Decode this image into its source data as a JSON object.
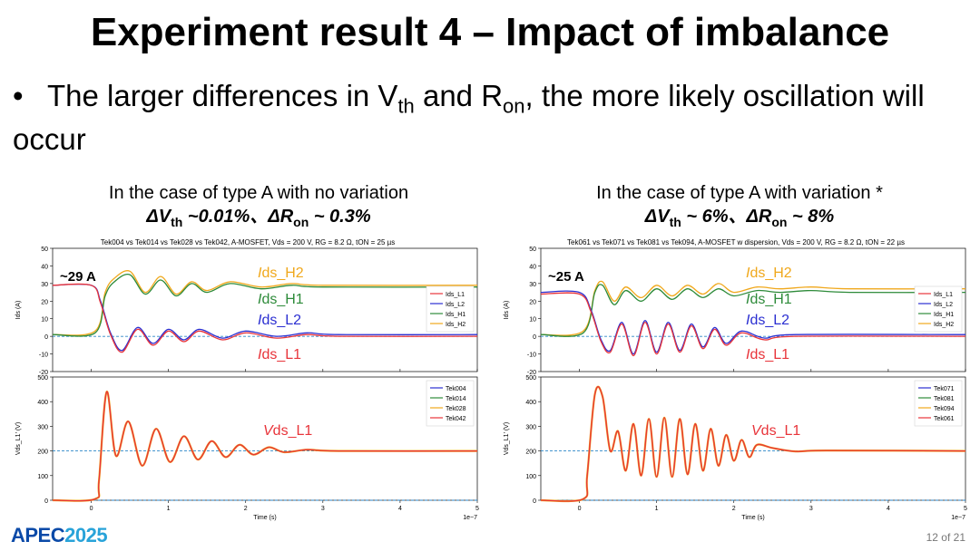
{
  "slide": {
    "title": "Experiment result 4 – Impact of imbalance",
    "bullet_dot": "•",
    "bullet_pre": "The larger differences in V",
    "bullet_sub1": "th",
    "bullet_mid": " and R",
    "bullet_sub2": "on",
    "bullet_post": ", the more likely oscillation will occur",
    "logo_a": "APEC",
    "logo_b": "2025",
    "page": "12 of 21"
  },
  "left_caption": {
    "line1": "In the case of type A with no variation",
    "dv": "ΔV",
    "dv_sub": "th",
    "dv_val": " ~0.01%、",
    "dr": "ΔR",
    "dr_sub": "on",
    "dr_val": " ~ 0.3%"
  },
  "right_caption": {
    "line1": "In the case of type A with variation *",
    "dv": "ΔV",
    "dv_sub": "th",
    "dv_val": " ~ 6%、",
    "dr": "ΔR",
    "dr_sub": "on",
    "dr_val": " ~ 8%"
  },
  "chart_data": [
    {
      "type": "line",
      "title": "Tek004 vs Tek014 vs Tek028 vs Tek042, A-MOSFET, Vds = 200 V, RG = 8.2 Ω, tON = 25 µs",
      "xlabel": "Time (s)",
      "x_scale_note": "1e−7",
      "xlim": [
        0,
        5
      ],
      "x_ticks": [
        0,
        1,
        2,
        3,
        4,
        5
      ],
      "grid": false,
      "colors": {
        "L1": "#e8343a",
        "L2": "#2b2fd1",
        "H1": "#2e8b3a",
        "H2": "#f0a81c",
        "ref": "#2a86c8"
      },
      "top": {
        "ylabel": "Ids (A)",
        "ylim": [
          -20,
          50
        ],
        "y_ticks": [
          -20,
          -10,
          0,
          10,
          20,
          30,
          40,
          50
        ],
        "ref_line": 0,
        "legend": [
          "Ids_L1",
          "Ids_L2",
          "Ids_H1",
          "Ids_H2"
        ],
        "legend_position": "right",
        "annotation": "~29 A",
        "labels": {
          "H2": "Ids_H2",
          "H1": "Ids_H1",
          "L2": "Ids_L2",
          "L1": "Ids_L1"
        },
        "series": [
          {
            "key": "H2",
            "x": [
              -0.5,
              0.05,
              0.18,
              0.3,
              0.5,
              0.7,
              0.9,
              1.1,
              1.3,
              1.5,
              1.8,
              2.2,
              2.6,
              3.0,
              5.0
            ],
            "y": [
              1,
              3,
              25,
              33,
              37,
              25,
              34,
              24,
              31,
              26,
              31,
              28,
              30,
              29,
              29
            ]
          },
          {
            "key": "H1",
            "x": [
              -0.5,
              0.05,
              0.18,
              0.3,
              0.5,
              0.7,
              0.9,
              1.1,
              1.3,
              1.5,
              1.8,
              2.2,
              2.6,
              3.0,
              5.0
            ],
            "y": [
              1,
              2,
              23,
              31,
              35,
              24,
              32,
              23,
              30,
              25,
              30,
              27,
              29,
              28,
              28
            ]
          },
          {
            "key": "L2",
            "x": [
              -0.5,
              0.0,
              0.12,
              0.25,
              0.4,
              0.6,
              0.8,
              1.0,
              1.2,
              1.4,
              1.7,
              2.0,
              2.4,
              2.8,
              3.2,
              5.0
            ],
            "y": [
              29,
              29,
              20,
              2,
              -8,
              5,
              -4,
              4,
              -2,
              4,
              -1,
              3,
              0,
              2,
              1,
              1
            ]
          },
          {
            "key": "L1",
            "x": [
              -0.5,
              0.0,
              0.12,
              0.25,
              0.4,
              0.6,
              0.8,
              1.0,
              1.2,
              1.4,
              1.7,
              2.0,
              2.4,
              2.8,
              3.2,
              5.0
            ],
            "y": [
              29,
              29,
              19,
              1,
              -9,
              4,
              -5,
              3,
              -3,
              3,
              -2,
              2,
              -1,
              1,
              0,
              0
            ]
          }
        ]
      },
      "bottom": {
        "ylabel": "Vds_L1' (V)",
        "ylim": [
          0,
          500
        ],
        "y_ticks": [
          0,
          100,
          200,
          300,
          400,
          500
        ],
        "ref_line": 200,
        "legend": [
          "Tek004",
          "Tek014",
          "Tek028",
          "Tek042"
        ],
        "legend_position": "top-right",
        "label": "Vds_L1",
        "legend_colors": [
          "#2b2fd1",
          "#2e8b3a",
          "#f0a81c",
          "#e8343a"
        ],
        "series": {
          "x": [
            -0.5,
            0.05,
            0.1,
            0.2,
            0.32,
            0.48,
            0.66,
            0.84,
            1.02,
            1.2,
            1.38,
            1.56,
            1.74,
            1.92,
            2.1,
            2.3,
            2.5,
            2.8,
            3.2,
            5.0
          ],
          "y": [
            0,
            5,
            80,
            440,
            180,
            320,
            140,
            290,
            155,
            260,
            165,
            240,
            175,
            225,
            185,
            215,
            195,
            205,
            200,
            200
          ]
        }
      }
    },
    {
      "type": "line",
      "title": "Tek061 vs Tek071 vs Tek081 vs Tek094, A-MOSFET w dispersion, Vds = 200 V, RG = 8.2 Ω, tON = 22 µs",
      "xlabel": "Time (s)",
      "x_scale_note": "1e−7",
      "xlim": [
        0,
        5
      ],
      "x_ticks": [
        0,
        1,
        2,
        3,
        4,
        5
      ],
      "grid": false,
      "colors": {
        "L1": "#e8343a",
        "L2": "#2b2fd1",
        "H1": "#2e8b3a",
        "H2": "#f0a81c",
        "ref": "#2a86c8"
      },
      "top": {
        "ylabel": "Ids (A)",
        "ylim": [
          -20,
          50
        ],
        "y_ticks": [
          -20,
          -10,
          0,
          10,
          20,
          30,
          40,
          50
        ],
        "ref_line": 0,
        "legend": [
          "Ids_L1",
          "Ids_L2",
          "Ids_H1",
          "Ids_H2"
        ],
        "legend_position": "right",
        "annotation": "~25 A",
        "labels": {
          "H2": "Ids_H2",
          "H1": "Ids_H1",
          "L2": "Ids_L2",
          "L1": "Ids_L1"
        },
        "series": [
          {
            "key": "H2",
            "x": [
              -0.5,
              0.05,
              0.2,
              0.3,
              0.45,
              0.6,
              0.8,
              1.0,
              1.2,
              1.4,
              1.6,
              1.8,
              2.0,
              2.3,
              2.6,
              3.0,
              3.5,
              5.0
            ],
            "y": [
              1,
              3,
              26,
              31,
              20,
              28,
              22,
              29,
              23,
              29,
              24,
              30,
              25,
              28,
              27,
              28,
              27,
              27
            ]
          },
          {
            "key": "H1",
            "x": [
              -0.5,
              0.05,
              0.2,
              0.3,
              0.45,
              0.6,
              0.8,
              1.0,
              1.2,
              1.4,
              1.6,
              1.8,
              2.0,
              2.3,
              2.6,
              3.0,
              3.5,
              5.0
            ],
            "y": [
              1,
              2,
              25,
              29,
              18,
              26,
              20,
              27,
              21,
              27,
              22,
              27,
              23,
              26,
              25,
              26,
              25,
              25
            ]
          },
          {
            "key": "L2",
            "x": [
              -0.5,
              0.0,
              0.15,
              0.28,
              0.4,
              0.55,
              0.7,
              0.85,
              1.0,
              1.15,
              1.3,
              1.45,
              1.6,
              1.75,
              1.9,
              2.1,
              2.4,
              2.8,
              5.0
            ],
            "y": [
              25,
              25,
              15,
              -2,
              -8,
              8,
              -10,
              9,
              -9,
              8,
              -8,
              7,
              -6,
              5,
              -4,
              3,
              -1,
              1,
              1
            ]
          },
          {
            "key": "L1",
            "x": [
              -0.5,
              0.0,
              0.15,
              0.28,
              0.4,
              0.55,
              0.7,
              0.85,
              1.0,
              1.15,
              1.3,
              1.45,
              1.6,
              1.75,
              1.9,
              2.1,
              2.4,
              2.8,
              5.0
            ],
            "y": [
              24,
              24,
              14,
              -3,
              -9,
              7,
              -11,
              8,
              -10,
              7,
              -9,
              6,
              -7,
              4,
              -5,
              2,
              -2,
              0,
              0
            ]
          }
        ]
      },
      "bottom": {
        "ylabel": "Vds_L1' (V)",
        "ylim": [
          0,
          500
        ],
        "y_ticks": [
          0,
          100,
          200,
          300,
          400,
          500
        ],
        "ref_line": 200,
        "legend": [
          "Tek071",
          "Tek081",
          "Tek094",
          "Tek061"
        ],
        "legend_position": "top-right",
        "label": "Vds_L1",
        "legend_colors": [
          "#2b2fd1",
          "#2e8b3a",
          "#f0a81c",
          "#e8343a"
        ],
        "series": {
          "x": [
            -0.5,
            0.05,
            0.1,
            0.2,
            0.3,
            0.4,
            0.5,
            0.6,
            0.7,
            0.8,
            0.9,
            1.0,
            1.1,
            1.2,
            1.3,
            1.4,
            1.5,
            1.6,
            1.7,
            1.8,
            1.9,
            2.0,
            2.1,
            2.2,
            2.3,
            2.5,
            2.8,
            3.2,
            5.0
          ],
          "y": [
            0,
            5,
            100,
            430,
            420,
            200,
            280,
            120,
            310,
            100,
            330,
            95,
            335,
            95,
            330,
            105,
            310,
            120,
            290,
            140,
            265,
            160,
            245,
            175,
            225,
            212,
            198,
            202,
            200
          ]
        }
      }
    }
  ]
}
